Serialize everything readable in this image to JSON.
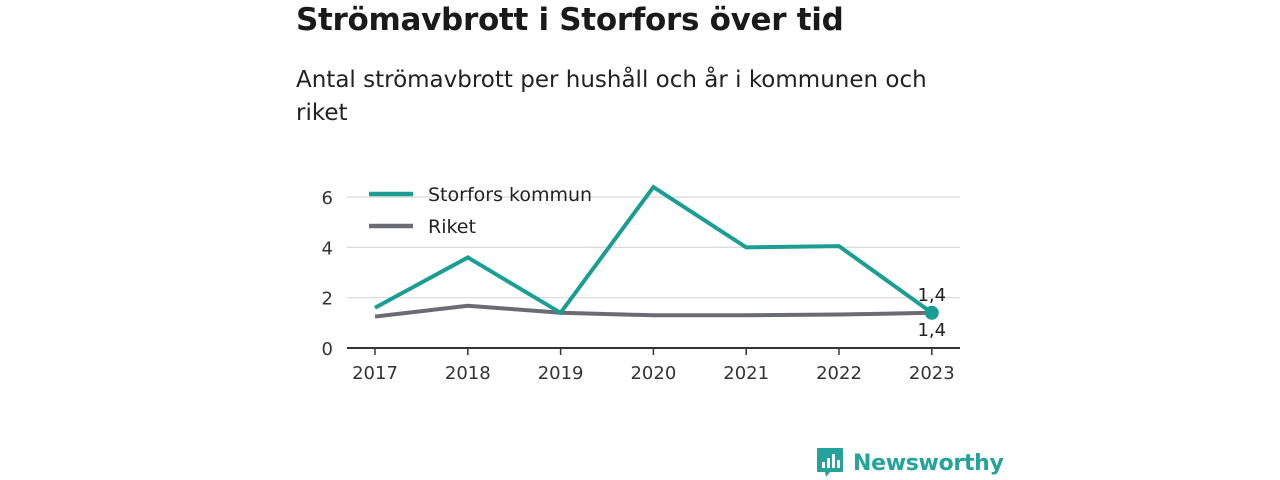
{
  "title": "Strömavbrott i Storfors över tid",
  "subtitle": "Antal strömavbrott per hushåll och år i kommunen och riket",
  "brand": {
    "name": "Newsworthy",
    "icon": "bar-chart-logo-icon"
  },
  "colors": {
    "kommun": "#1a9e93",
    "riket": "#6b6b73",
    "grid": "#d9d9d9",
    "axis": "#333333",
    "brand": "#24a39b"
  },
  "chart_data": {
    "type": "line",
    "categories": [
      "2017",
      "2018",
      "2019",
      "2020",
      "2021",
      "2022",
      "2023"
    ],
    "series": [
      {
        "name": "Storfors kommun",
        "values": [
          1.6,
          3.6,
          1.4,
          6.4,
          4.0,
          4.05,
          1.4
        ]
      },
      {
        "name": "Riket",
        "values": [
          1.25,
          1.68,
          1.4,
          1.3,
          1.3,
          1.33,
          1.4
        ]
      }
    ],
    "ylim": [
      0,
      6.6
    ],
    "yticks": [
      "0",
      "2",
      "4",
      "6"
    ],
    "ytick_values": [
      0,
      2,
      4,
      6
    ],
    "end_labels": [
      "1,4",
      "1,4"
    ],
    "grid": true,
    "legend": "top-left"
  }
}
